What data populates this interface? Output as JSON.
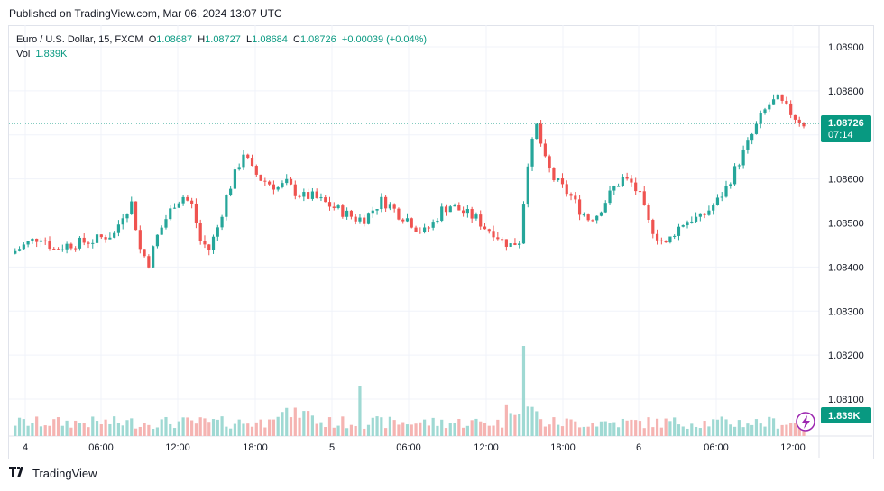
{
  "header": {
    "published": "Published on TradingView.com, Mar 06, 2024 13:07 UTC"
  },
  "legend": {
    "symbol": "Euro / U.S. Dollar, 15, FXCM",
    "o_label": "O",
    "o": "1.08687",
    "h_label": "H",
    "h": "1.08727",
    "l_label": "L",
    "l": "1.08684",
    "c_label": "C",
    "c": "1.08726",
    "change": "+0.00039 (+0.04%)",
    "vol_label": "Vol",
    "vol": "1.839K"
  },
  "price_label": {
    "price": "1.08726",
    "countdown": "07:14"
  },
  "vol_label_badge": "1.839K",
  "footer": {
    "brand": "TradingView"
  },
  "colors": {
    "up": "#26a69a",
    "down": "#ef5350",
    "badge": "#089981",
    "vol_up": "#9fd9d3",
    "vol_down": "#f5b4b2"
  },
  "icons": {
    "lightning": "lightning-icon",
    "logo": "tradingview-logo-icon"
  },
  "chart_data": {
    "type": "candlestick",
    "title": "Euro / U.S. Dollar, 15, FXCM",
    "y_ticks": [
      "1.08900",
      "1.08800",
      "1.08700",
      "1.08600",
      "1.08500",
      "1.08400",
      "1.08300",
      "1.08200",
      "1.08100"
    ],
    "x_ticks": [
      "4",
      "06:00",
      "12:00",
      "18:00",
      "5",
      "06:00",
      "12:00",
      "18:00",
      "6",
      "06:00",
      "12:00"
    ],
    "ylim": [
      1.0809,
      1.0894
    ],
    "last_price": 1.08726,
    "grid": true,
    "close_path": [
      [
        0,
        1.0843
      ],
      [
        4,
        1.08455
      ],
      [
        7,
        1.0847
      ],
      [
        10,
        1.0844
      ],
      [
        13,
        1.0845
      ],
      [
        16,
        1.08455
      ],
      [
        19,
        1.0846
      ],
      [
        22,
        1.0847
      ],
      [
        24,
        1.08475
      ],
      [
        26,
        1.0852
      ],
      [
        28,
        1.08545
      ],
      [
        30,
        1.0844
      ],
      [
        32,
        1.0841
      ],
      [
        34,
        1.0847
      ],
      [
        36,
        1.0851
      ],
      [
        38,
        1.08545
      ],
      [
        40,
        1.0856
      ],
      [
        42,
        1.0854
      ],
      [
        44,
        1.0846
      ],
      [
        46,
        1.0844
      ],
      [
        48,
        1.0849
      ],
      [
        50,
        1.0856
      ],
      [
        52,
        1.0861
      ],
      [
        54,
        1.0866
      ],
      [
        56,
        1.0862
      ],
      [
        58,
        1.086
      ],
      [
        60,
        1.0859
      ],
      [
        62,
        1.0858
      ],
      [
        64,
        1.0859
      ],
      [
        66,
        1.0857
      ],
      [
        68,
        1.0856
      ],
      [
        70,
        1.0856
      ],
      [
        72,
        1.0855
      ],
      [
        74,
        1.0854
      ],
      [
        76,
        1.0853
      ],
      [
        78,
        1.0852
      ],
      [
        80,
        1.0851
      ],
      [
        82,
        1.0851
      ],
      [
        84,
        1.0853
      ],
      [
        86,
        1.0855
      ],
      [
        88,
        1.0854
      ],
      [
        90,
        1.0852
      ],
      [
        92,
        1.0851
      ],
      [
        94,
        1.0849
      ],
      [
        96,
        1.0848
      ],
      [
        98,
        1.085
      ],
      [
        100,
        1.0853
      ],
      [
        102,
        1.0854
      ],
      [
        104,
        1.0853
      ],
      [
        106,
        1.0852
      ],
      [
        108,
        1.0851
      ],
      [
        110,
        1.0849
      ],
      [
        112,
        1.0848
      ],
      [
        114,
        1.0846
      ],
      [
        116,
        1.0845
      ],
      [
        118,
        1.0846
      ],
      [
        120,
        1.0864
      ],
      [
        122,
        1.0872
      ],
      [
        124,
        1.0864
      ],
      [
        126,
        1.086
      ],
      [
        128,
        1.0858
      ],
      [
        130,
        1.0856
      ],
      [
        132,
        1.0853
      ],
      [
        134,
        1.0851
      ],
      [
        136,
        1.0852
      ],
      [
        138,
        1.0855
      ],
      [
        140,
        1.0858
      ],
      [
        142,
        1.086
      ],
      [
        144,
        1.0859
      ],
      [
        146,
        1.0856
      ],
      [
        148,
        1.085
      ],
      [
        150,
        1.0847
      ],
      [
        152,
        1.0845
      ],
      [
        154,
        1.0848
      ],
      [
        156,
        1.085
      ],
      [
        158,
        1.0851
      ],
      [
        160,
        1.0851
      ],
      [
        162,
        1.0853
      ],
      [
        164,
        1.0855
      ],
      [
        166,
        1.0858
      ],
      [
        168,
        1.0862
      ],
      [
        170,
        1.0866
      ],
      [
        172,
        1.087
      ],
      [
        174,
        1.0874
      ],
      [
        176,
        1.0877
      ],
      [
        178,
        1.0878
      ],
      [
        180,
        1.0876
      ],
      [
        182,
        1.0874
      ],
      [
        184,
        1.08726
      ]
    ],
    "volume_last": "1.839K"
  }
}
